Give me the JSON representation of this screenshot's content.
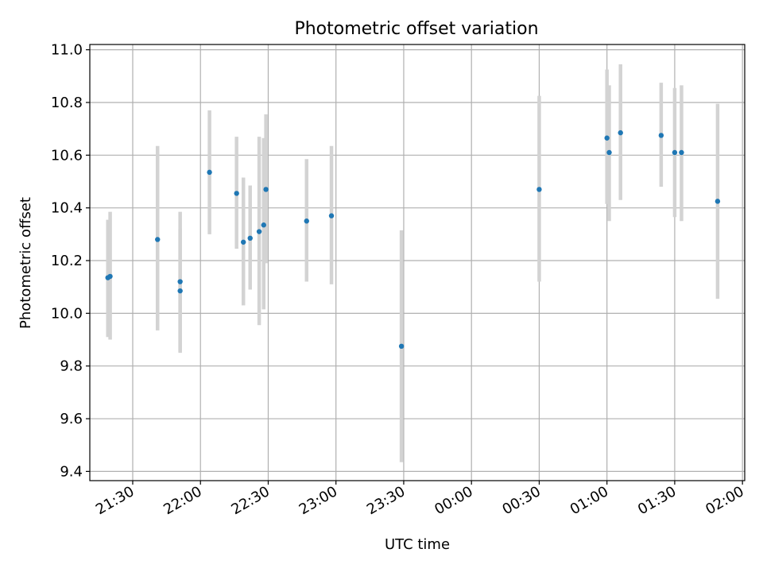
{
  "chart_data": {
    "type": "scatter",
    "title": "Photometric offset variation",
    "xlabel": "UTC time",
    "ylabel": "Photometric offset",
    "grid": true,
    "xlim": [
      "21:11",
      "02:01"
    ],
    "ylim": [
      9.365,
      11.02
    ],
    "x_ticks": [
      "21:30",
      "22:00",
      "22:30",
      "23:00",
      "23:30",
      "00:00",
      "00:30",
      "01:00",
      "01:30",
      "02:00"
    ],
    "y_ticks": [
      "9.4",
      "9.6",
      "9.8",
      "10.0",
      "10.2",
      "10.4",
      "10.6",
      "10.8",
      "11.0"
    ],
    "series": [
      {
        "marker_color": "#1f77b4",
        "errorbar_color": "#d3d3d3",
        "x": [
          "21:19",
          "21:20",
          "21:41",
          "21:51",
          "21:51",
          "22:04",
          "22:16",
          "22:19",
          "22:22",
          "22:26",
          "22:28",
          "22:29",
          "22:47",
          "22:58",
          "23:29",
          "00:30",
          "01:00",
          "01:01",
          "01:06",
          "01:24",
          "01:30",
          "01:33",
          "01:49"
        ],
        "y": [
          10.135,
          10.14,
          10.28,
          10.085,
          10.12,
          10.535,
          10.455,
          10.27,
          10.285,
          10.31,
          10.335,
          10.47,
          10.35,
          10.37,
          9.875,
          10.47,
          10.665,
          10.61,
          10.685,
          10.675,
          10.61,
          10.61,
          10.425
        ],
        "y_low": [
          9.91,
          9.9,
          9.935,
          9.85,
          9.855,
          10.3,
          10.245,
          10.03,
          10.09,
          9.955,
          10.015,
          10.19,
          10.12,
          10.11,
          9.435,
          10.12,
          10.415,
          10.35,
          10.43,
          10.48,
          10.365,
          10.35,
          10.055
        ],
        "y_high": [
          10.355,
          10.385,
          10.635,
          10.32,
          10.385,
          10.77,
          10.67,
          10.515,
          10.485,
          10.67,
          10.665,
          10.755,
          10.585,
          10.635,
          10.315,
          10.825,
          10.925,
          10.865,
          10.945,
          10.875,
          10.855,
          10.865,
          10.795
        ]
      }
    ]
  }
}
